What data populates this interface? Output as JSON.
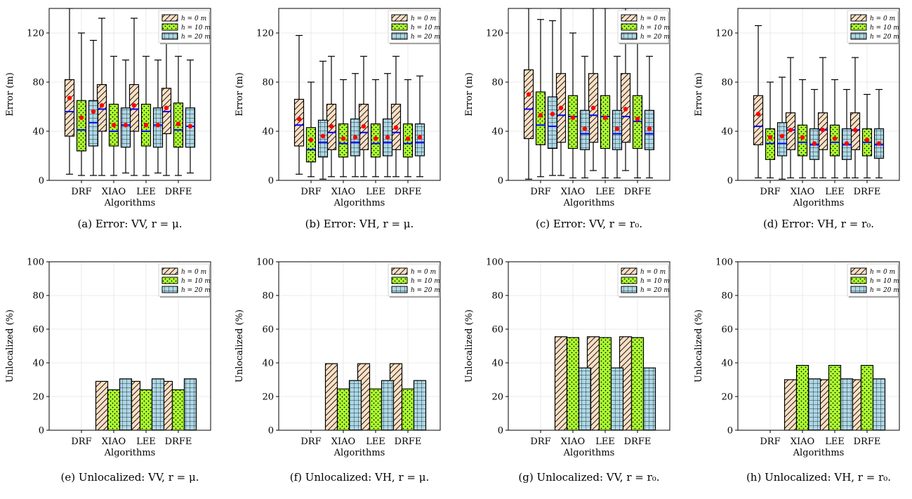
{
  "figure": {
    "captions": [
      "(a) Error:  VV, r = μ.",
      "(b) Error:  VH, r = μ.",
      "(c) Error:  VV, r = r₀.",
      "(d) Error:  VH, r = r₀.",
      "(e) Unlocalized:  VV, r = μ.",
      "(f) Unlocalized:  VH, r = μ.",
      "(g) Unlocalized:  VV, r = r₀.",
      "(h) Unlocalized:  VH, r = r₀."
    ],
    "colors": {
      "h0": "#fde0c5",
      "h10": "#adff2f",
      "h20": "#add8e6",
      "median": "#0000ff",
      "mean": "#ff0000"
    }
  },
  "chart_data": [
    {
      "type": "box",
      "xlabel": "Algorithms",
      "ylabel": "Error (m)",
      "ylim": [
        0,
        140
      ],
      "yticks": [
        0,
        40,
        80,
        120
      ],
      "categories": [
        "DRF",
        "XIAO",
        "LEE",
        "DRFE"
      ],
      "legend": [
        "h = 0 m",
        "h = 10 m",
        "h = 20 m"
      ],
      "legend_position": "top-right",
      "series": [
        {
          "name": "h = 0 m",
          "boxes": [
            {
              "whislo": 5,
              "q1": 36,
              "med": 56,
              "q3": 82,
              "whishi": 140,
              "mean": 67
            },
            {
              "whislo": 4,
              "q1": 40,
              "med": 58,
              "q3": 78,
              "whishi": 132,
              "mean": 61
            },
            {
              "whislo": 4,
              "q1": 40,
              "med": 58,
              "q3": 78,
              "whishi": 132,
              "mean": 61
            },
            {
              "whislo": 4,
              "q1": 38,
              "med": 56,
              "q3": 75,
              "whishi": 124,
              "mean": 59
            }
          ]
        },
        {
          "name": "h = 10 m",
          "boxes": [
            {
              "whislo": 4,
              "q1": 24,
              "med": 41,
              "q3": 65,
              "whishi": 120,
              "mean": 51
            },
            {
              "whislo": 4,
              "q1": 28,
              "med": 40,
              "q3": 62,
              "whishi": 101,
              "mean": 45
            },
            {
              "whislo": 4,
              "q1": 28,
              "med": 40,
              "q3": 62,
              "whishi": 101,
              "mean": 45
            },
            {
              "whislo": 4,
              "q1": 27,
              "med": 41,
              "q3": 63,
              "whishi": 101,
              "mean": 46
            }
          ]
        },
        {
          "name": "h = 20 m",
          "boxes": [
            {
              "whislo": 4,
              "q1": 28,
              "med": 47,
              "q3": 65,
              "whishi": 114,
              "mean": 56
            },
            {
              "whislo": 6,
              "q1": 27,
              "med": 45,
              "q3": 59,
              "whishi": 98,
              "mean": 45
            },
            {
              "whislo": 6,
              "q1": 27,
              "med": 45,
              "q3": 59,
              "whishi": 98,
              "mean": 45
            },
            {
              "whislo": 6,
              "q1": 27,
              "med": 44,
              "q3": 59,
              "whishi": 98,
              "mean": 44
            }
          ]
        }
      ]
    },
    {
      "type": "box",
      "xlabel": "Algorithms",
      "ylabel": "Error (m)",
      "ylim": [
        0,
        140
      ],
      "yticks": [
        0,
        40,
        80,
        120
      ],
      "categories": [
        "DRF",
        "XIAO",
        "LEE",
        "DRFE"
      ],
      "legend": [
        "h = 0 m",
        "h = 10 m",
        "h = 20 m"
      ],
      "legend_position": "top-right",
      "series": [
        {
          "name": "h = 0 m",
          "boxes": [
            {
              "whislo": 5,
              "q1": 28,
              "med": 45,
              "q3": 66,
              "whishi": 118,
              "mean": 50
            },
            {
              "whislo": 3,
              "q1": 25,
              "med": 39,
              "q3": 62,
              "whishi": 101,
              "mean": 44
            },
            {
              "whislo": 3,
              "q1": 25,
              "med": 39,
              "q3": 62,
              "whishi": 101,
              "mean": 44
            },
            {
              "whislo": 3,
              "q1": 25,
              "med": 39,
              "q3": 62,
              "whishi": 101,
              "mean": 43
            }
          ]
        },
        {
          "name": "h = 10 m",
          "boxes": [
            {
              "whislo": 3,
              "q1": 15,
              "med": 25,
              "q3": 43,
              "whishi": 80,
              "mean": 33
            },
            {
              "whislo": 3,
              "q1": 19,
              "med": 30,
              "q3": 46,
              "whishi": 82,
              "mean": 34
            },
            {
              "whislo": 3,
              "q1": 19,
              "med": 30,
              "q3": 46,
              "whishi": 82,
              "mean": 34
            },
            {
              "whislo": 3,
              "q1": 19,
              "med": 30,
              "q3": 46,
              "whishi": 82,
              "mean": 34
            }
          ]
        },
        {
          "name": "h = 20 m",
          "boxes": [
            {
              "whislo": 1,
              "q1": 19,
              "med": 31,
              "q3": 49,
              "whishi": 97,
              "mean": 36
            },
            {
              "whislo": 3,
              "q1": 20,
              "med": 31,
              "q3": 50,
              "whishi": 87,
              "mean": 35
            },
            {
              "whislo": 3,
              "q1": 20,
              "med": 31,
              "q3": 50,
              "whishi": 87,
              "mean": 35
            },
            {
              "whislo": 3,
              "q1": 20,
              "med": 31,
              "q3": 46,
              "whishi": 85,
              "mean": 35
            }
          ]
        }
      ]
    },
    {
      "type": "box",
      "xlabel": "Algorithms",
      "ylabel": "Error (m)",
      "ylim": [
        0,
        140
      ],
      "yticks": [
        0,
        40,
        80,
        120
      ],
      "categories": [
        "DRF",
        "XIAO",
        "LEE",
        "DRFE"
      ],
      "legend": [
        "h = 0 m",
        "h = 10 m",
        "h = 20 m"
      ],
      "legend_position": "top-right",
      "series": [
        {
          "name": "h = 0 m",
          "boxes": [
            {
              "whislo": 1,
              "q1": 34,
              "med": 58,
              "q3": 90,
              "whishi": 140,
              "mean": 70
            },
            {
              "whislo": 4,
              "q1": 31,
              "med": 53,
              "q3": 87,
              "whishi": 140,
              "mean": 59
            },
            {
              "whislo": 8,
              "q1": 31,
              "med": 53,
              "q3": 87,
              "whishi": 140,
              "mean": 59
            },
            {
              "whislo": 8,
              "q1": 31,
              "med": 52,
              "q3": 87,
              "whishi": 140,
              "mean": 58
            }
          ]
        },
        {
          "name": "h = 10 m",
          "boxes": [
            {
              "whislo": 3,
              "q1": 29,
              "med": 45,
              "q3": 72,
              "whishi": 131,
              "mean": 53
            },
            {
              "whislo": 2,
              "q1": 26,
              "med": 52,
              "q3": 69,
              "whishi": 120,
              "mean": 51
            },
            {
              "whislo": 2,
              "q1": 26,
              "med": 52,
              "q3": 69,
              "whishi": 140,
              "mean": 51
            },
            {
              "whislo": 2,
              "q1": 26,
              "med": 48,
              "q3": 69,
              "whishi": 125,
              "mean": 50
            }
          ]
        },
        {
          "name": "h = 20 m",
          "boxes": [
            {
              "whislo": 4,
              "q1": 26,
              "med": 44,
              "q3": 68,
              "whishi": 130,
              "mean": 54
            },
            {
              "whislo": 2,
              "q1": 25,
              "med": 38,
              "q3": 57,
              "whishi": 101,
              "mean": 42
            },
            {
              "whislo": 2,
              "q1": 25,
              "med": 38,
              "q3": 57,
              "whishi": 101,
              "mean": 42
            },
            {
              "whislo": 2,
              "q1": 25,
              "med": 38,
              "q3": 57,
              "whishi": 101,
              "mean": 42
            }
          ]
        }
      ]
    },
    {
      "type": "box",
      "xlabel": "Algorithms",
      "ylabel": "Error (m)",
      "ylim": [
        0,
        140
      ],
      "yticks": [
        0,
        40,
        80,
        120
      ],
      "categories": [
        "DRF",
        "XIAO",
        "LEE",
        "DRFE"
      ],
      "legend": [
        "h = 0 m",
        "h = 10 m",
        "h = 20 m"
      ],
      "legend_position": "top-right",
      "series": [
        {
          "name": "h = 0 m",
          "boxes": [
            {
              "whislo": 2,
              "q1": 29,
              "med": 44,
              "q3": 69,
              "whishi": 126,
              "mean": 54
            },
            {
              "whislo": 2,
              "q1": 25,
              "med": 41,
              "q3": 55,
              "whishi": 100,
              "mean": 41
            },
            {
              "whislo": 2,
              "q1": 25,
              "med": 41,
              "q3": 55,
              "whishi": 100,
              "mean": 41
            },
            {
              "whislo": 2,
              "q1": 25,
              "med": 41,
              "q3": 55,
              "whishi": 100,
              "mean": 41
            }
          ]
        },
        {
          "name": "h = 10 m",
          "boxes": [
            {
              "whislo": 2,
              "q1": 17,
              "med": 30,
              "q3": 42,
              "whishi": 80,
              "mean": 35
            },
            {
              "whislo": 2,
              "q1": 20,
              "med": 31,
              "q3": 45,
              "whishi": 82,
              "mean": 35
            },
            {
              "whislo": 2,
              "q1": 20,
              "med": 31,
              "q3": 45,
              "whishi": 82,
              "mean": 34
            },
            {
              "whislo": 2,
              "q1": 20,
              "med": 31,
              "q3": 42,
              "whishi": 70,
              "mean": 33
            }
          ]
        },
        {
          "name": "h = 20 m",
          "boxes": [
            {
              "whislo": 1,
              "q1": 20,
              "med": 30,
              "q3": 47,
              "whishi": 84,
              "mean": 36
            },
            {
              "whislo": 2,
              "q1": 17,
              "med": 29,
              "q3": 42,
              "whishi": 74,
              "mean": 30
            },
            {
              "whislo": 2,
              "q1": 17,
              "med": 29,
              "q3": 42,
              "whishi": 74,
              "mean": 30
            },
            {
              "whislo": 2,
              "q1": 18,
              "med": 29,
              "q3": 42,
              "whishi": 74,
              "mean": 30
            }
          ]
        }
      ]
    },
    {
      "type": "bar",
      "xlabel": "Algorithms",
      "ylabel": "Unlocalized (%)",
      "ylim": [
        0,
        100
      ],
      "yticks": [
        0,
        20,
        40,
        60,
        80,
        100
      ],
      "categories": [
        "DRF",
        "XIAO",
        "LEE",
        "DRFE"
      ],
      "legend": [
        "h = 0 m",
        "h = 10 m",
        "h = 20 m"
      ],
      "legend_position": "top-right",
      "series": [
        {
          "name": "h = 0 m",
          "values": [
            0,
            29,
            29,
            29
          ]
        },
        {
          "name": "h = 10 m",
          "values": [
            0,
            24,
            24,
            24
          ]
        },
        {
          "name": "h = 20 m",
          "values": [
            0,
            30.5,
            30.5,
            30.5
          ]
        }
      ]
    },
    {
      "type": "bar",
      "xlabel": "Algorithms",
      "ylabel": "Unlocalized (%)",
      "ylim": [
        0,
        100
      ],
      "yticks": [
        0,
        20,
        40,
        60,
        80,
        100
      ],
      "categories": [
        "DRF",
        "XIAO",
        "LEE",
        "DRFE"
      ],
      "legend": [
        "h = 0 m",
        "h = 10 m",
        "h = 20 m"
      ],
      "legend_position": "top-right",
      "series": [
        {
          "name": "h = 0 m",
          "values": [
            0,
            39.5,
            39.5,
            39.5
          ]
        },
        {
          "name": "h = 10 m",
          "values": [
            0,
            24.5,
            24.5,
            24.5
          ]
        },
        {
          "name": "h = 20 m",
          "values": [
            0,
            29.5,
            29.5,
            29.5
          ]
        }
      ]
    },
    {
      "type": "bar",
      "xlabel": "Algorithms",
      "ylabel": "Unlocalized (%)",
      "ylim": [
        0,
        100
      ],
      "yticks": [
        0,
        20,
        40,
        60,
        80,
        100
      ],
      "categories": [
        "DRF",
        "XIAO",
        "LEE",
        "DRFE"
      ],
      "legend": [
        "h = 0 m",
        "h = 10 m",
        "h = 20 m"
      ],
      "legend_position": "top-right",
      "series": [
        {
          "name": "h = 0 m",
          "values": [
            0,
            55.5,
            55.5,
            55.5
          ]
        },
        {
          "name": "h = 10 m",
          "values": [
            0,
            55,
            55,
            55
          ]
        },
        {
          "name": "h = 20 m",
          "values": [
            0,
            37,
            37,
            37
          ]
        }
      ]
    },
    {
      "type": "bar",
      "xlabel": "Algorithms",
      "ylabel": "Unlocalized (%)",
      "ylim": [
        0,
        100
      ],
      "yticks": [
        0,
        20,
        40,
        60,
        80,
        100
      ],
      "categories": [
        "DRF",
        "XIAO",
        "LEE",
        "DRFE"
      ],
      "legend": [
        "h = 0 m",
        "h = 10 m",
        "h = 20 m"
      ],
      "legend_position": "top-right",
      "series": [
        {
          "name": "h = 0 m",
          "values": [
            0,
            30,
            30,
            30
          ]
        },
        {
          "name": "h = 10 m",
          "values": [
            0,
            38.5,
            38.5,
            38.5
          ]
        },
        {
          "name": "h = 20 m",
          "values": [
            0,
            30.5,
            30.5,
            30.5
          ]
        }
      ]
    }
  ]
}
